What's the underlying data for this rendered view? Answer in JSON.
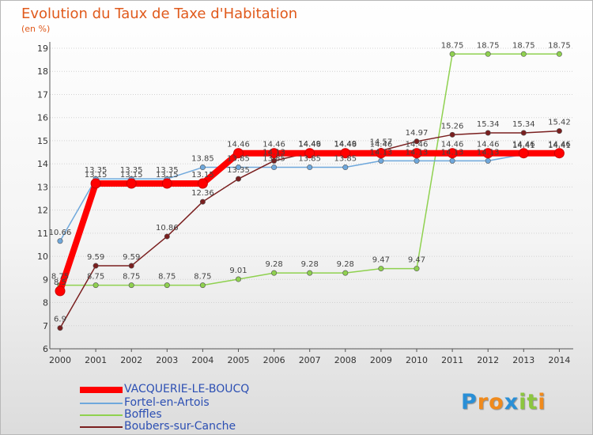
{
  "chart_data": {
    "type": "line",
    "title": "Evolution du Taux de Taxe d'Habitation",
    "subtitle": "(en %)",
    "xlabel": "",
    "ylabel": "",
    "ylim": [
      6,
      19
    ],
    "yticks": [
      "6",
      "7",
      "8",
      "9",
      "10",
      "11",
      "12",
      "13",
      "14",
      "15",
      "16",
      "17",
      "18",
      "19"
    ],
    "categories": [
      "2000",
      "2001",
      "2002",
      "2003",
      "2004",
      "2005",
      "2006",
      "2007",
      "2008",
      "2009",
      "2010",
      "2011",
      "2012",
      "2013",
      "2014"
    ],
    "series": [
      {
        "name": "VACQUERIE-LE-BOUCQ",
        "color": "#ff0000",
        "values": [
          8.5,
          13.15,
          13.15,
          13.15,
          13.15,
          14.46,
          14.46,
          14.46,
          14.46,
          14.46,
          14.46,
          14.46,
          14.46,
          14.46,
          14.46
        ],
        "labels": [
          "8.5",
          "13.15",
          "13.15",
          "13.15",
          "13.15",
          "14.46",
          "14.46",
          "14.46",
          "14.46",
          "14.46",
          "14.46",
          "14.46",
          "14.46",
          "14.46",
          "14.46"
        ]
      },
      {
        "name": "Fortel-en-Artois",
        "color": "#6fa8dc",
        "values": [
          10.66,
          13.35,
          13.35,
          13.35,
          13.85,
          13.85,
          13.85,
          13.85,
          13.85,
          14.13,
          14.13,
          14.13,
          14.13,
          14.41,
          14.41
        ],
        "labels": [
          "10.66",
          "13.35",
          "13.35",
          "13.35",
          "13.85",
          "13.85",
          "13.85",
          "13.85",
          "13.85",
          "14.13",
          "14.13",
          "14.13",
          "14.13",
          "14.41",
          "14.41"
        ]
      },
      {
        "name": "Boffles",
        "color": "#8fd14f",
        "values": [
          8.75,
          8.75,
          8.75,
          8.75,
          8.75,
          9.01,
          9.28,
          9.28,
          9.28,
          9.47,
          9.47,
          18.75,
          18.75,
          18.75,
          18.75
        ],
        "labels": [
          "8.75",
          "8.75",
          "8.75",
          "8.75",
          "8.75",
          "9.01",
          "9.28",
          "9.28",
          "9.28",
          "9.47",
          "9.47",
          "18.75",
          "18.75",
          "18.75",
          "18.75"
        ]
      },
      {
        "name": "Boubers-sur-Canche",
        "color": "#7a1f1f",
        "values": [
          6.9,
          9.59,
          9.59,
          10.86,
          12.36,
          13.35,
          14.13,
          14.49,
          14.49,
          14.57,
          14.97,
          15.26,
          15.34,
          15.34,
          15.42
        ],
        "labels": [
          "6.9",
          "9.59",
          "9.59",
          "10.86",
          "12.36",
          "13.35",
          "14.13",
          "14.49",
          "14.49",
          "14.57",
          "14.97",
          "15.26",
          "15.34",
          "15.34",
          "15.42"
        ]
      }
    ]
  },
  "logo": {
    "letters": [
      "P",
      "r",
      "o",
      "x",
      "i",
      "t",
      "i"
    ],
    "colors": [
      "#2a8fd6",
      "#f08a1c",
      "#f08a1c",
      "#2a8fd6",
      "#8cc63f",
      "#8cc63f",
      "#f08a1c"
    ]
  }
}
